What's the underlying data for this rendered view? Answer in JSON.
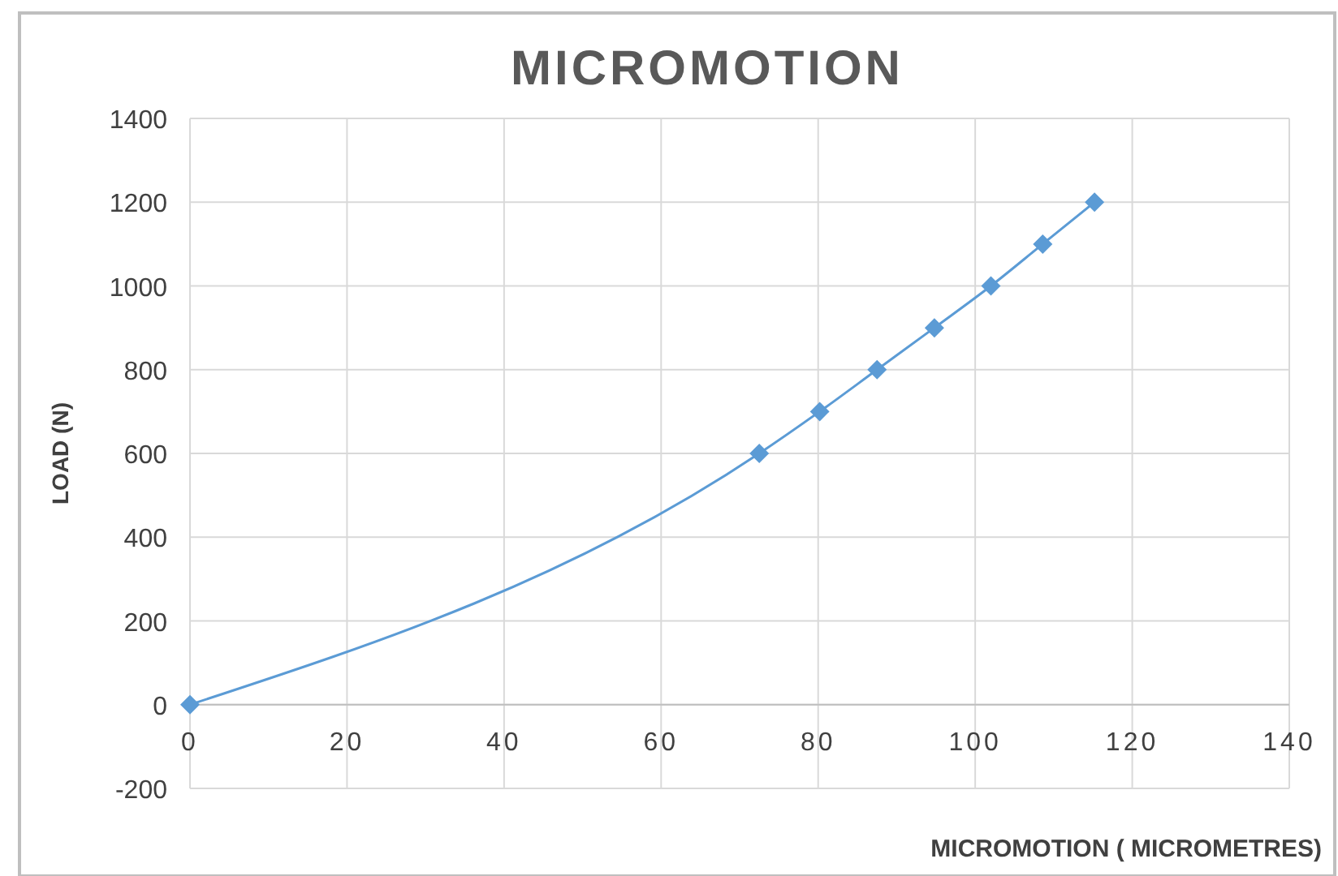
{
  "chart_data": {
    "type": "line",
    "title": "MICROMOTION",
    "xlabel": "MICROMOTION ( MICROMETRES)",
    "ylabel": "LOAD (N)",
    "x": [
      0,
      72.5,
      80.2,
      87.5,
      94.8,
      102,
      108.6,
      115.2
    ],
    "series": [
      {
        "color": "#5b9bd5",
        "values": [
          0,
          600,
          700,
          800,
          900,
          1000,
          1100,
          1200
        ]
      }
    ],
    "xlim": [
      0,
      140
    ],
    "xticks": [
      0,
      20,
      40,
      60,
      80,
      100,
      120,
      140
    ],
    "ylim": [
      -200,
      1400
    ],
    "yticks": [
      -200,
      0,
      200,
      400,
      600,
      800,
      1000,
      1200,
      1400
    ],
    "grid": true,
    "marker": "diamond",
    "line_style": "solid"
  }
}
